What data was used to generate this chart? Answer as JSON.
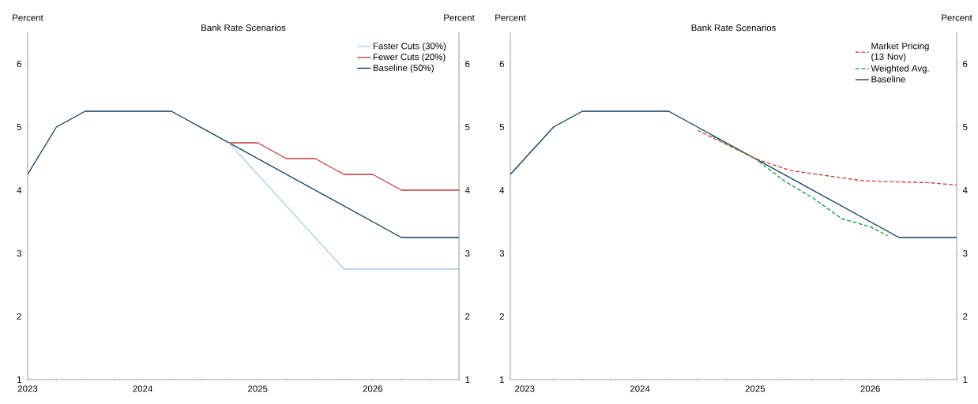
{
  "chart_data": [
    {
      "type": "line",
      "title": "Bank Rate Scenarios",
      "ylabel": "Percent",
      "y2label": "Percent",
      "xlim": [
        2023,
        2026.75
      ],
      "xticks": [
        2023,
        {
          "value": 2023.25,
          "label": null
        },
        {
          "value": 2023.5,
          "label": null
        },
        {
          "value": 2023.75,
          "label": null
        },
        2024,
        {
          "value": 2024.25,
          "label": null
        },
        {
          "value": 2024.5,
          "label": null
        },
        {
          "value": 2024.75,
          "label": null
        },
        2025,
        {
          "value": 2025.25,
          "label": null
        },
        {
          "value": 2025.5,
          "label": null
        },
        {
          "value": 2025.75,
          "label": null
        },
        2026,
        {
          "value": 2026.25,
          "label": null
        },
        {
          "value": 2026.5,
          "label": null
        },
        {
          "value": 2026.75,
          "label": null
        }
      ],
      "ylim": [
        1,
        6.5
      ],
      "yticks": [
        1,
        2,
        3,
        4,
        5,
        6
      ],
      "y2lim": [
        1,
        6.5
      ],
      "y2ticks": [
        1,
        2,
        3,
        4,
        5,
        6
      ],
      "legend": "top right",
      "grid": false,
      "line_style": "solid",
      "series": [
        {
          "name": "Faster Cuts (30%)",
          "color": "#a6cfec",
          "x": [
            2024.75,
            2025.75,
            2026.75
          ],
          "values": [
            4.75,
            2.75,
            2.75
          ]
        },
        {
          "name": "Fewer Cuts (20%)",
          "color": "#c8383a",
          "x": [
            2024.75,
            2025,
            2025.25,
            2025.5,
            2025.75,
            2026,
            2026.25,
            2026.75
          ],
          "values": [
            4.75,
            4.75,
            4.5,
            4.5,
            4.25,
            4.25,
            4.0,
            4.0
          ]
        },
        {
          "name": "Baseline (50%)",
          "color": "#0d3a5c",
          "x": [
            2023,
            2023.25,
            2023.5,
            2024.25,
            2026.25,
            2026.75
          ],
          "values": [
            4.25,
            5.0,
            5.25,
            5.25,
            3.25,
            3.25
          ]
        }
      ]
    },
    {
      "type": "line",
      "title": "Bank Rate Scenarios",
      "ylabel": "Percent",
      "y2label": "Percent",
      "xlim": [
        2022.875,
        2026.75
      ],
      "xticks": [
        2023,
        {
          "value": 2023.25,
          "label": null
        },
        {
          "value": 2023.5,
          "label": null
        },
        {
          "value": 2023.75,
          "label": null
        },
        2024,
        {
          "value": 2024.25,
          "label": null
        },
        {
          "value": 2024.5,
          "label": null
        },
        {
          "value": 2024.75,
          "label": null
        },
        2025,
        {
          "value": 2025.25,
          "label": null
        },
        {
          "value": 2025.5,
          "label": null
        },
        {
          "value": 2025.75,
          "label": null
        },
        2026,
        {
          "value": 2026.25,
          "label": null
        },
        {
          "value": 2026.5,
          "label": null
        },
        {
          "value": 2026.75,
          "label": null
        }
      ],
      "ylim": [
        1,
        6.5
      ],
      "yticks": [
        1,
        2,
        3,
        4,
        5,
        6
      ],
      "y2lim": [
        1,
        6.5
      ],
      "y2ticks": [
        1,
        2,
        3,
        4,
        5,
        6
      ],
      "legend": "top right",
      "grid": false,
      "line_style": "solid",
      "series": [
        {
          "name": "Market Pricing (13 Nov)",
          "color": "#d03a3a",
          "line_style": "dashed",
          "x": [
            2024.5,
            2025,
            2025.31,
            2025.93,
            2026.25,
            2026.5,
            2026.75
          ],
          "values": [
            4.95,
            4.5,
            4.31,
            4.15,
            4.13,
            4.12,
            4.08
          ]
        },
        {
          "name": "Weighted Avg.",
          "color": "#1a9641",
          "line_style": "dashed",
          "x": [
            2024.625,
            2025,
            2025.25,
            2025.5,
            2025.75,
            2026,
            2026.15
          ],
          "values": [
            4.86,
            4.5,
            4.15,
            3.88,
            3.55,
            3.42,
            3.28
          ]
        },
        {
          "name": "Baseline",
          "color": "#0d3a5c",
          "x": [
            2022.875,
            2023.25,
            2023.5,
            2024.25,
            2026.25,
            2026.75
          ],
          "values": [
            4.25,
            5.0,
            5.25,
            5.25,
            3.25,
            3.25
          ]
        }
      ]
    }
  ]
}
